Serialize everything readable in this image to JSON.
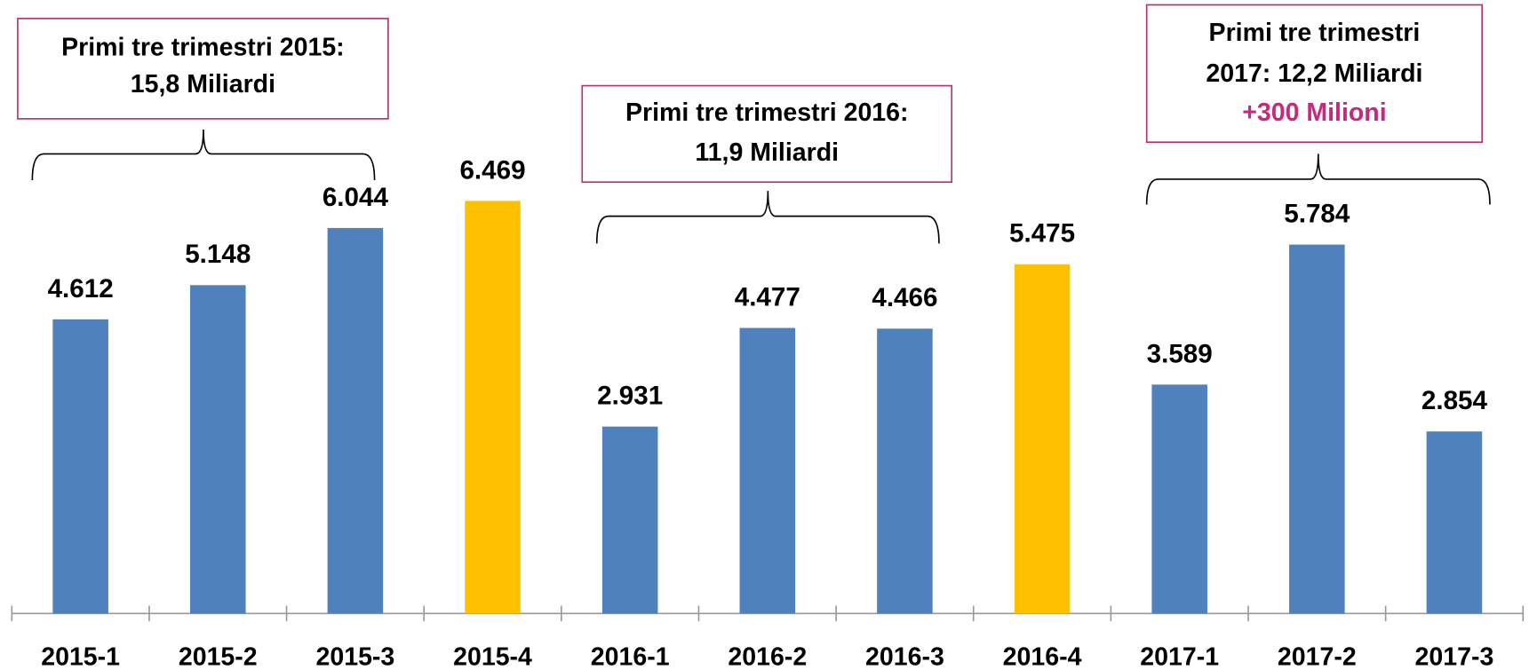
{
  "chart_data": {
    "type": "bar",
    "categories": [
      "2015-1",
      "2015-2",
      "2015-3",
      "2015-4",
      "2016-1",
      "2016-2",
      "2016-3",
      "2016-4",
      "2017-1",
      "2017-2",
      "2017-3"
    ],
    "values": [
      4612,
      5148,
      6044,
      6469,
      2931,
      4477,
      4466,
      5475,
      3589,
      5784,
      2854
    ],
    "value_labels": [
      "4.612",
      "5.148",
      "6.044",
      "6.469",
      "2.931",
      "4.477",
      "4.466",
      "5.475",
      "3.589",
      "5.784",
      "2.854"
    ],
    "colors": [
      "#4f81bd",
      "#4f81bd",
      "#4f81bd",
      "#ffc000",
      "#4f81bd",
      "#4f81bd",
      "#4f81bd",
      "#ffc000",
      "#4f81bd",
      "#4f81bd",
      "#4f81bd"
    ],
    "annotations": [
      {
        "lines": [
          "Primi tre trimestri 2015:",
          "15,8 Miliardi"
        ]
      },
      {
        "lines": [
          "Primi tre trimestri 2016:",
          "11,9 Miliardi"
        ]
      },
      {
        "lines": [
          "Primi tre trimestri",
          "2017: 12,2 Miliardi"
        ],
        "highlight": "+300 Milioni",
        "highlight_color": "#c8287e"
      }
    ]
  }
}
